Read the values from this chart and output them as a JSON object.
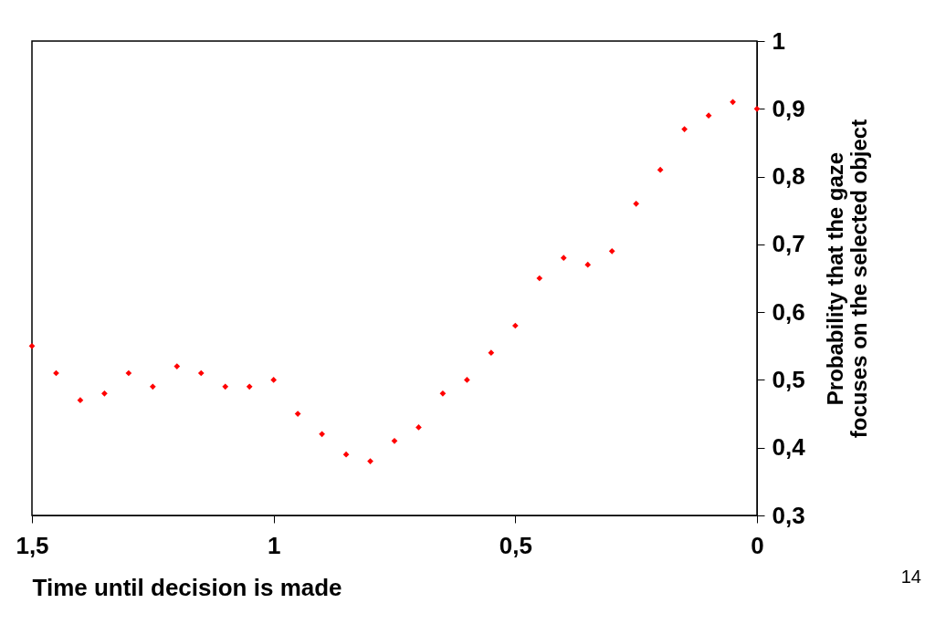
{
  "chart_data": {
    "type": "scatter",
    "xlabel": "Time until decision is made",
    "ylabel": "Probability that the gaze\nfocuses on the selected object",
    "x": [
      1.5,
      1.45,
      1.4,
      1.35,
      1.3,
      1.25,
      1.2,
      1.15,
      1.1,
      1.05,
      1.0,
      0.95,
      0.9,
      0.85,
      0.8,
      0.75,
      0.7,
      0.65,
      0.6,
      0.55,
      0.5,
      0.45,
      0.4,
      0.35,
      0.3,
      0.25,
      0.2,
      0.15,
      0.1,
      0.05,
      0.0
    ],
    "series": [
      {
        "color": "#ff0000",
        "values": [
          0.55,
          0.51,
          0.47,
          0.48,
          0.51,
          0.49,
          0.52,
          0.51,
          0.49,
          0.49,
          0.5,
          0.45,
          0.42,
          0.39,
          0.38,
          0.41,
          0.43,
          0.48,
          0.5,
          0.54,
          0.58,
          0.65,
          0.68,
          0.67,
          0.69,
          0.76,
          0.81,
          0.87,
          0.89,
          0.91,
          0.9
        ]
      }
    ],
    "xlim": [
      1.5,
      0
    ],
    "xticks": [
      {
        "value": 1.5,
        "label": "1,5"
      },
      1,
      {
        "value": 0.5,
        "label": "0,5"
      },
      0
    ],
    "ylim": [
      0.3,
      1
    ],
    "yticks": [
      {
        "value": 0.3,
        "label": "0,3"
      },
      {
        "value": 0.4,
        "label": "0,4"
      },
      {
        "value": 0.5,
        "label": "0,5"
      },
      {
        "value": 0.6,
        "label": "0,6"
      },
      {
        "value": 0.7,
        "label": "0,7"
      },
      {
        "value": 0.8,
        "label": "0,8"
      },
      {
        "value": 0.9,
        "label": "0,9"
      },
      1
    ],
    "marker": "diamond",
    "grid": false,
    "annotations": [
      "14"
    ]
  }
}
